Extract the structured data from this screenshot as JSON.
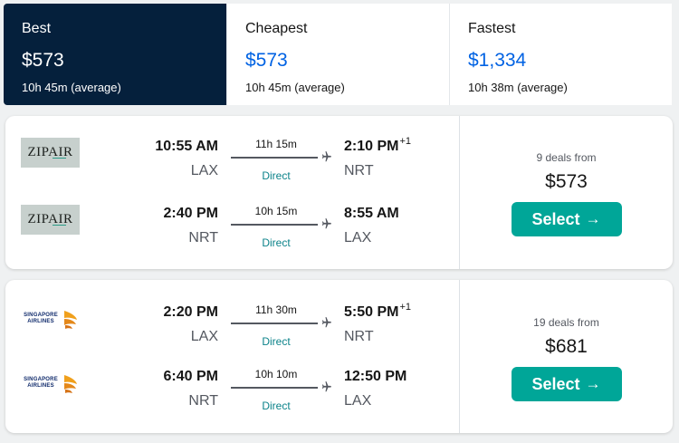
{
  "sort_tabs": [
    {
      "label": "Best",
      "price": "$573",
      "duration": "10h 45m (average)"
    },
    {
      "label": "Cheapest",
      "price": "$573",
      "duration": "10h 45m (average)"
    },
    {
      "label": "Fastest",
      "price": "$1,334",
      "duration": "10h 38m (average)"
    }
  ],
  "results": [
    {
      "airline": "ZIPAIR",
      "legs": [
        {
          "depart_time": "10:55 AM",
          "depart_code": "LAX",
          "duration": "11h 15m",
          "stops": "Direct",
          "arrive_time": "2:10 PM",
          "day_offset": "+1",
          "arrive_code": "NRT"
        },
        {
          "depart_time": "2:40 PM",
          "depart_code": "NRT",
          "duration": "10h 15m",
          "stops": "Direct",
          "arrive_time": "8:55 AM",
          "day_offset": "",
          "arrive_code": "LAX"
        }
      ],
      "deals": "9 deals from",
      "price": "$573",
      "select_label": "Select"
    },
    {
      "airline": "SINGAPORE AIRLINES",
      "legs": [
        {
          "depart_time": "2:20 PM",
          "depart_code": "LAX",
          "duration": "11h 30m",
          "stops": "Direct",
          "arrive_time": "5:50 PM",
          "day_offset": "+1",
          "arrive_code": "NRT"
        },
        {
          "depart_time": "6:40 PM",
          "depart_code": "NRT",
          "duration": "10h 10m",
          "stops": "Direct",
          "arrive_time": "12:50 PM",
          "day_offset": "",
          "arrive_code": "LAX"
        }
      ],
      "deals": "19 deals from",
      "price": "$681",
      "select_label": "Select"
    }
  ],
  "colors": {
    "active_tab_bg": "#05203c",
    "price_blue": "#0062e3",
    "select_button": "#00a698",
    "direct_text": "#0c838a"
  },
  "icons": {
    "plane": "plane-icon",
    "arrow": "arrow-right-icon",
    "logo_zipair": "zipair-logo",
    "logo_sia": "singapore-airlines-logo"
  }
}
